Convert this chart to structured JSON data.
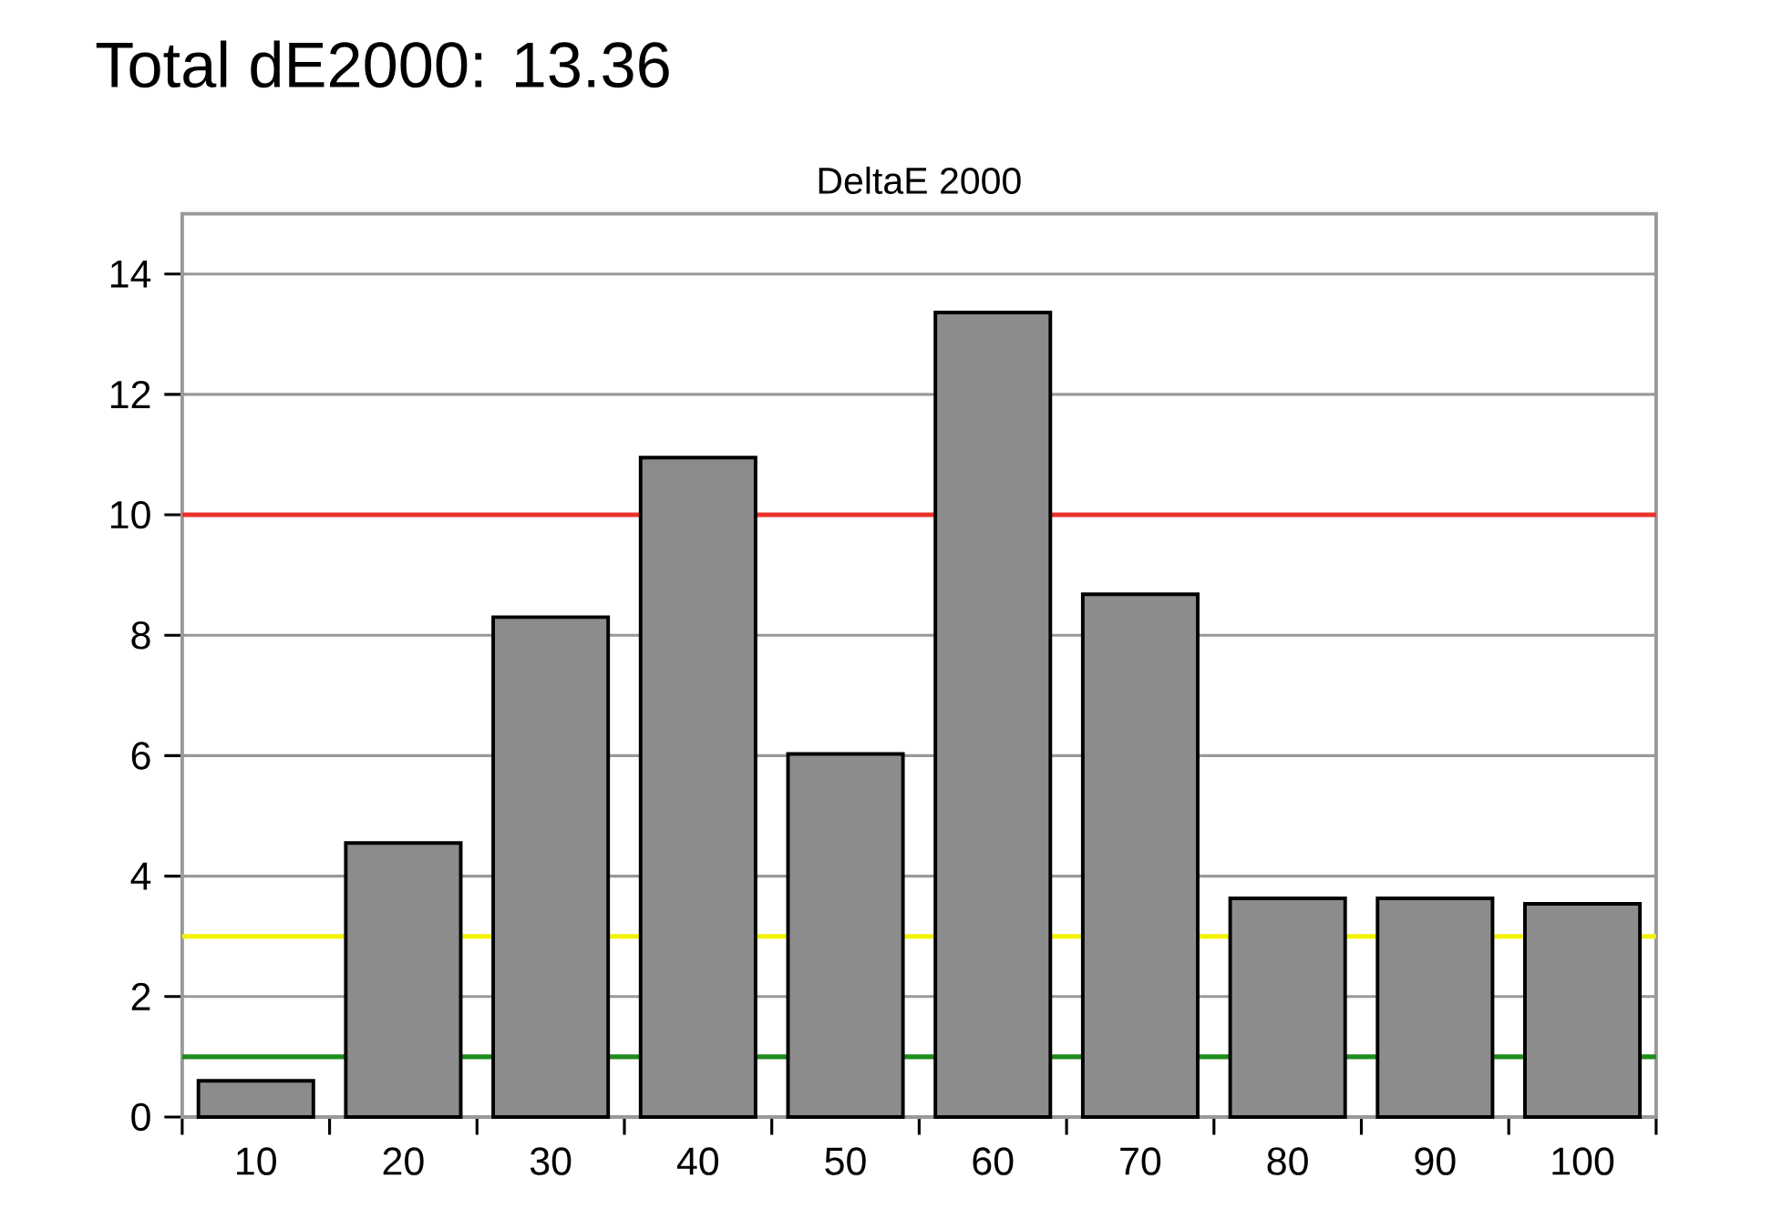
{
  "chart_data": {
    "type": "bar",
    "title": "Total dE2000: 13.36",
    "subtitle": "DeltaE 2000",
    "categories": [
      "10",
      "20",
      "30",
      "40",
      "50",
      "60",
      "70",
      "80",
      "90",
      "100"
    ],
    "values": [
      0.6,
      4.55,
      8.3,
      10.95,
      6.03,
      13.36,
      8.68,
      3.63,
      3.63,
      3.54
    ],
    "color": "#8c8c8c",
    "ylim": [
      0,
      15
    ],
    "yticks": [
      0,
      2,
      4,
      6,
      8,
      10,
      12,
      14
    ],
    "grid": "y",
    "ref_lines": [
      {
        "axis": "y",
        "value": 10,
        "color": "#e8322b"
      },
      {
        "axis": "y",
        "value": 3,
        "color": "#f2f200"
      },
      {
        "axis": "y",
        "value": 1,
        "color": "#1e8c1e"
      }
    ]
  }
}
